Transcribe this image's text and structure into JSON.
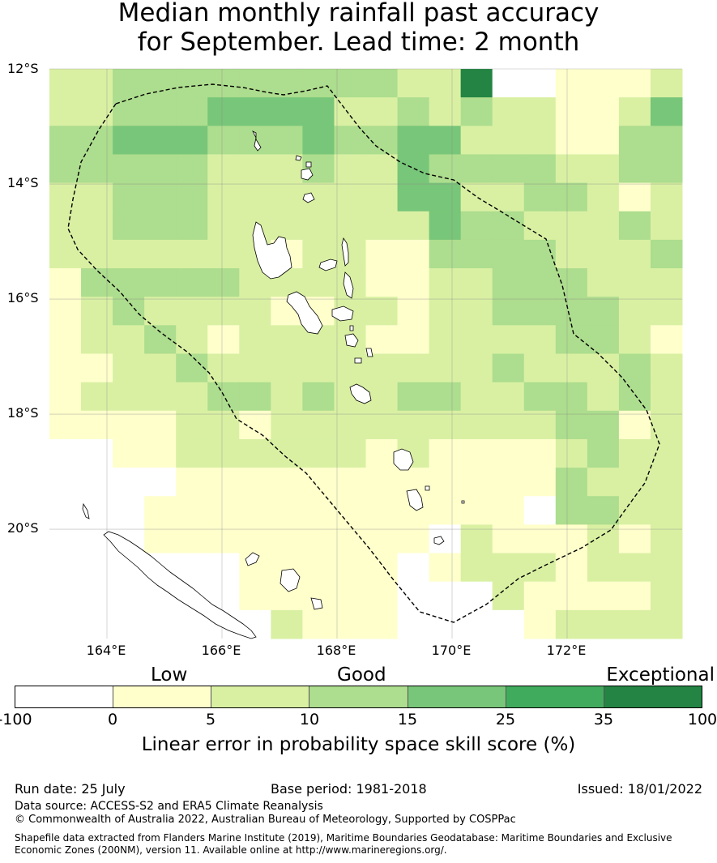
{
  "title": {
    "line1": "Median monthly rainfall past accuracy",
    "line2": "for September. Lead time: 2 month"
  },
  "map": {
    "region": "Vanuatu",
    "lat_ticks": [
      "12°S",
      "14°S",
      "16°S",
      "18°S",
      "20°S"
    ],
    "lon_ticks": [
      "164°E",
      "166°E",
      "168°E",
      "170°E",
      "172°E"
    ],
    "lon_range": [
      163.0,
      174.0
    ],
    "lat_range": [
      -12.0,
      -21.9
    ],
    "cell_size_deg": 0.833,
    "grid_rows": [
      "22333333333226001112",
      "22333444422323221124",
      "33444333433442221133",
      "33333222322433332233",
      "22333222222442233212",
      "22333222222243322232",
      "22222221221133332223",
      "13333322221122333222",
      "12322221122122333322",
      "12232122221122223321",
      "11223222222222322232",
      "12222332322332233232",
      "11112212222222223312",
      "00112222221211112322",
      "00001111111111113222",
      "00011111111111103322",
      "00011111111102111212",
      "00000011111012221222",
      "00000011111000211112",
      "00000002111000012222"
    ],
    "colors": [
      "#ffffff",
      "#ffffcc",
      "#d9f0a3",
      "#addd8e",
      "#78c679",
      "#41ab5d",
      "#238443"
    ],
    "boundary_color": "#000000"
  },
  "colorbar": {
    "categories": {
      "low": "Low",
      "good": "Good",
      "exceptional": "Exceptional"
    },
    "ticks": [
      "-100",
      "0",
      "5",
      "10",
      "15",
      "25",
      "35",
      "100"
    ],
    "colors": [
      "#ffffff",
      "#ffffcc",
      "#d9f0a3",
      "#addd8e",
      "#78c679",
      "#41ab5d",
      "#238443"
    ],
    "label": "Linear error in probability space skill score (%)"
  },
  "footer": {
    "run_date": "Run date: 25 July",
    "base_period": "Base period: 1981-2018",
    "issued": "Issued: 18/01/2022",
    "data_source": "Data source: ACCESS-S2 and ERA5 Climate Reanalysis",
    "copyright": "© Commonwealth of Australia 2022, Australian Bureau of Meteorology, Supported by COSPPac",
    "shapefile_line1": "Shapefile data extracted from Flanders Marine Institute (2019), Maritime Boundaries Geodatabase: Maritime Boundaries and Exclusive",
    "shapefile_line2": "Economic Zones (200NM), version 11. Available online at http://www.marineregions.org/."
  }
}
